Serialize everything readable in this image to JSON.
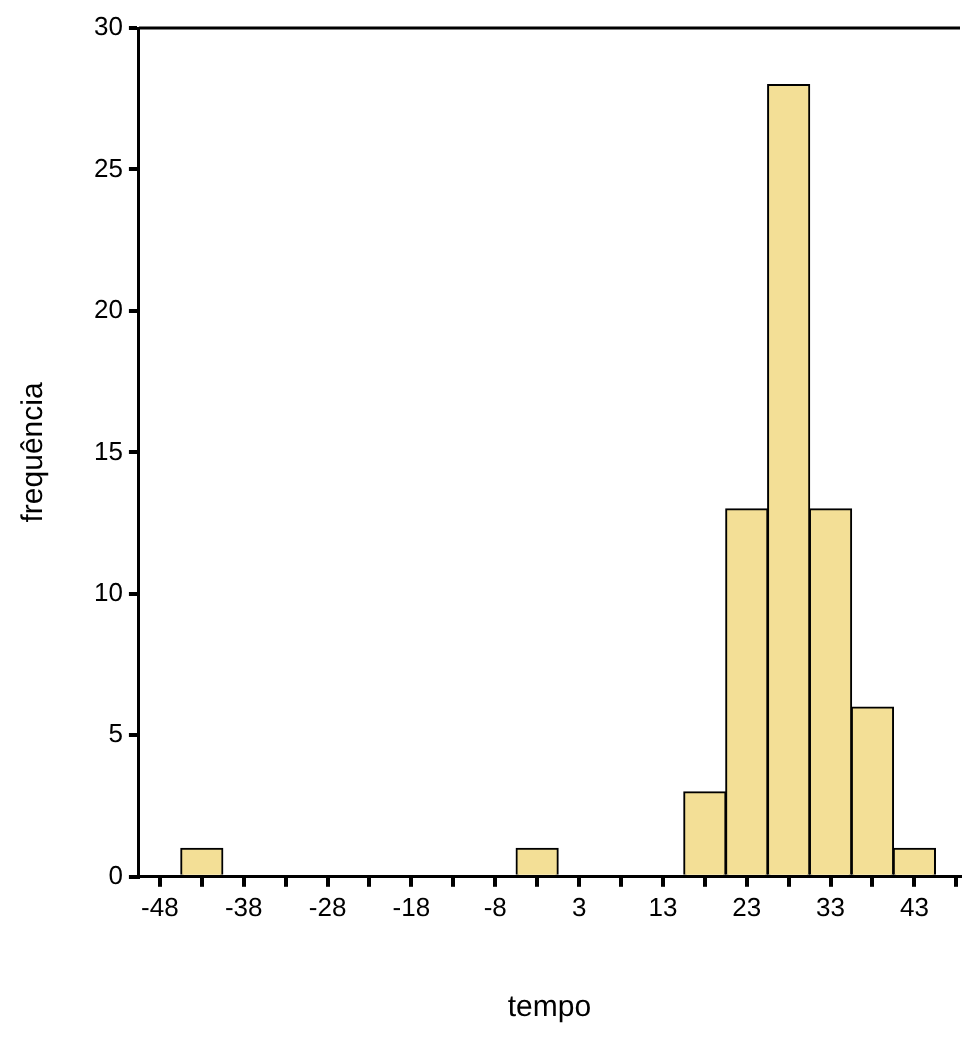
{
  "chart_data": {
    "type": "histogram",
    "xlabel": "tempo",
    "ylabel": "frequência",
    "bins": [
      -50.53,
      -45.47,
      -40.42,
      -35.36,
      -30.31,
      -25.25,
      -20.19,
      -15.14,
      -10.08,
      -5.03,
      0.03,
      5.08,
      10.14,
      15.19,
      20.25,
      25.31,
      30.36,
      35.42,
      40.47,
      45.53
    ],
    "values": [
      0,
      1,
      0,
      0,
      0,
      0,
      0,
      0,
      0,
      1,
      0,
      0,
      0,
      3,
      13,
      28,
      13,
      6,
      1
    ],
    "color": "#f3df96",
    "xlim": [
      -50.53,
      48.5
    ],
    "xticks": [
      {
        "value": -48,
        "label": "-48"
      },
      {
        "value": -42.94,
        "label": null
      },
      {
        "value": -37.89,
        "label": "-38"
      },
      {
        "value": -32.83,
        "label": null
      },
      {
        "value": -27.78,
        "label": "-28"
      },
      {
        "value": -22.72,
        "label": null
      },
      {
        "value": -17.67,
        "label": "-18"
      },
      {
        "value": -12.61,
        "label": null
      },
      {
        "value": -7.56,
        "label": "-8"
      },
      {
        "value": -2.5,
        "label": null
      },
      {
        "value": 2.56,
        "label": "3"
      },
      {
        "value": 7.61,
        "label": null
      },
      {
        "value": 12.67,
        "label": "13"
      },
      {
        "value": 17.72,
        "label": null
      },
      {
        "value": 22.78,
        "label": "23"
      },
      {
        "value": 27.83,
        "label": null
      },
      {
        "value": 32.89,
        "label": "33"
      },
      {
        "value": 37.94,
        "label": null
      },
      {
        "value": 43,
        "label": "43"
      },
      {
        "value": 48.06,
        "label": null
      }
    ],
    "ylim": [
      0,
      30
    ],
    "yticks": [
      0,
      5,
      10,
      15,
      20,
      25,
      30
    ],
    "grid": false,
    "legend": false
  }
}
